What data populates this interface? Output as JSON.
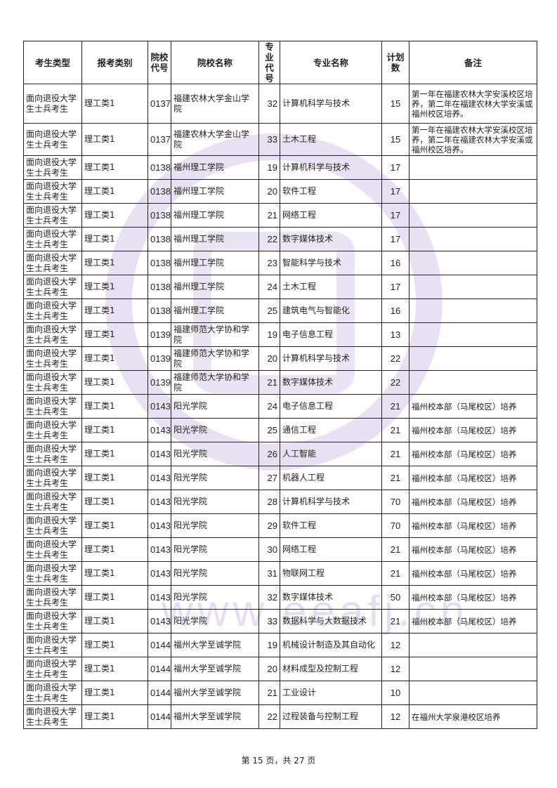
{
  "headers": [
    "考生类型",
    "报考类别",
    "院校代号",
    "院校名称",
    "专业代号",
    "专业名称",
    "计划数",
    "备注"
  ],
  "rows": [
    [
      "面向退役大学生士兵考生",
      "理工类1",
      "0137",
      "福建农林大学金山学院",
      "32",
      "计算机科学与技术",
      "15",
      "第一年在福建农林大学安溪校区培养，第二年在福建农林大学安溪或福州校区培养。"
    ],
    [
      "面向退役大学生士兵考生",
      "理工类1",
      "0137",
      "福建农林大学金山学院",
      "33",
      "土木工程",
      "15",
      "第一年在福建农林大学安溪校区培养，第二年在福建农林大学安溪或福州校区培养。"
    ],
    [
      "面向退役大学生士兵考生",
      "理工类1",
      "0138",
      "福州理工学院",
      "19",
      "计算机科学与技术",
      "17",
      ""
    ],
    [
      "面向退役大学生士兵考生",
      "理工类1",
      "0138",
      "福州理工学院",
      "20",
      "软件工程",
      "17",
      ""
    ],
    [
      "面向退役大学生士兵考生",
      "理工类1",
      "0138",
      "福州理工学院",
      "21",
      "网络工程",
      "17",
      ""
    ],
    [
      "面向退役大学生士兵考生",
      "理工类1",
      "0138",
      "福州理工学院",
      "22",
      "数字媒体技术",
      "17",
      ""
    ],
    [
      "面向退役大学生士兵考生",
      "理工类1",
      "0138",
      "福州理工学院",
      "23",
      "智能科学与技术",
      "16",
      ""
    ],
    [
      "面向退役大学生士兵考生",
      "理工类1",
      "0138",
      "福州理工学院",
      "24",
      "土木工程",
      "17",
      ""
    ],
    [
      "面向退役大学生士兵考生",
      "理工类1",
      "0138",
      "福州理工学院",
      "25",
      "建筑电气与智能化",
      "16",
      ""
    ],
    [
      "面向退役大学生士兵考生",
      "理工类1",
      "0139",
      "福建师范大学协和学院",
      "19",
      "电子信息工程",
      "13",
      ""
    ],
    [
      "面向退役大学生士兵考生",
      "理工类1",
      "0139",
      "福建师范大学协和学院",
      "20",
      "计算机科学与技术",
      "22",
      ""
    ],
    [
      "面向退役大学生士兵考生",
      "理工类1",
      "0139",
      "福建师范大学协和学院",
      "21",
      "数字媒体技术",
      "22",
      ""
    ],
    [
      "面向退役大学生士兵考生",
      "理工类1",
      "0143",
      "阳光学院",
      "24",
      "电子信息工程",
      "21",
      "福州校本部（马尾校区）培养"
    ],
    [
      "面向退役大学生士兵考生",
      "理工类1",
      "0143",
      "阳光学院",
      "25",
      "通信工程",
      "21",
      "福州校本部（马尾校区）培养"
    ],
    [
      "面向退役大学生士兵考生",
      "理工类1",
      "0143",
      "阳光学院",
      "26",
      "人工智能",
      "21",
      "福州校本部（马尾校区）培养"
    ],
    [
      "面向退役大学生士兵考生",
      "理工类1",
      "0143",
      "阳光学院",
      "27",
      "机器人工程",
      "21",
      "福州校本部（马尾校区）培养"
    ],
    [
      "面向退役大学生士兵考生",
      "理工类1",
      "0143",
      "阳光学院",
      "28",
      "计算机科学与技术",
      "70",
      "福州校本部（马尾校区）培养"
    ],
    [
      "面向退役大学生士兵考生",
      "理工类1",
      "0143",
      "阳光学院",
      "29",
      "软件工程",
      "70",
      "福州校本部（马尾校区）培养"
    ],
    [
      "面向退役大学生士兵考生",
      "理工类1",
      "0143",
      "阳光学院",
      "30",
      "网络工程",
      "21",
      "福州校本部（马尾校区）培养"
    ],
    [
      "面向退役大学生士兵考生",
      "理工类1",
      "0143",
      "阳光学院",
      "31",
      "物联网工程",
      "21",
      "福州校本部（马尾校区）培养"
    ],
    [
      "面向退役大学生士兵考生",
      "理工类1",
      "0143",
      "阳光学院",
      "32",
      "数字媒体技术",
      "50",
      "福州校本部（马尾校区）培养"
    ],
    [
      "面向退役大学生士兵考生",
      "理工类1",
      "0143",
      "阳光学院",
      "33",
      "数据科学与大数据技术",
      "21",
      "福州校本部（马尾校区）培养"
    ],
    [
      "面向退役大学生士兵考生",
      "理工类1",
      "0144",
      "福州大学至诚学院",
      "19",
      "机械设计制造及其自动化",
      "12",
      ""
    ],
    [
      "面向退役大学生士兵考生",
      "理工类1",
      "0144",
      "福州大学至诚学院",
      "20",
      "材料成型及控制工程",
      "12",
      ""
    ],
    [
      "面向退役大学生士兵考生",
      "理工类1",
      "0144",
      "福州大学至诚学院",
      "21",
      "工业设计",
      "10",
      ""
    ],
    [
      "面向退役大学生士兵考生",
      "理工类1",
      "0144",
      "福州大学至诚学院",
      "22",
      "过程装备与控制工程",
      "12",
      "在福州大学泉港校区培养"
    ]
  ],
  "watermark": "www.eeafj.cn",
  "footer": "第 15 页，共 27 页"
}
